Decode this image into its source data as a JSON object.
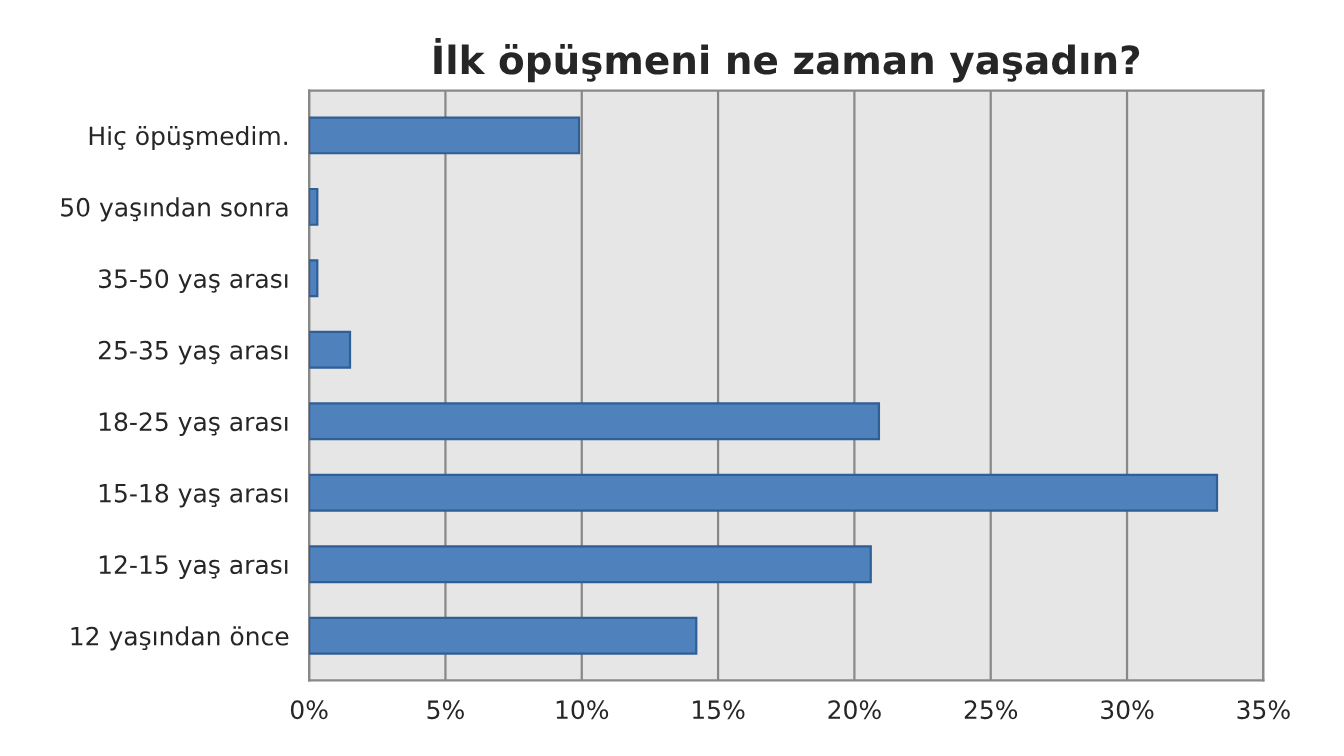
{
  "chart_data": {
    "type": "bar",
    "orientation": "horizontal",
    "title": "İlk öpüşmeni ne zaman yaşadın?",
    "categories": [
      "Hiç öpüşmedim.",
      "50 yaşından sonra",
      "35-50 yaş arası",
      "25-35 yaş arası",
      "18-25 yaş arası",
      "15-18 yaş arası",
      "12-15 yaş arası",
      "12 yaşından önce"
    ],
    "values": [
      9.9,
      0.3,
      0.3,
      1.5,
      20.9,
      33.3,
      20.6,
      14.2
    ],
    "color": "#4f81bd",
    "xlim": [
      0,
      35
    ],
    "xticks": [
      {
        "value": 0,
        "label": "0%"
      },
      {
        "value": 5,
        "label": "5%"
      },
      {
        "value": 10,
        "label": "10%"
      },
      {
        "value": 15,
        "label": "15%"
      },
      {
        "value": 20,
        "label": "20%"
      },
      {
        "value": 25,
        "label": "25%"
      },
      {
        "value": 30,
        "label": "30%"
      },
      {
        "value": 35,
        "label": "35%"
      }
    ],
    "grid": "x"
  }
}
